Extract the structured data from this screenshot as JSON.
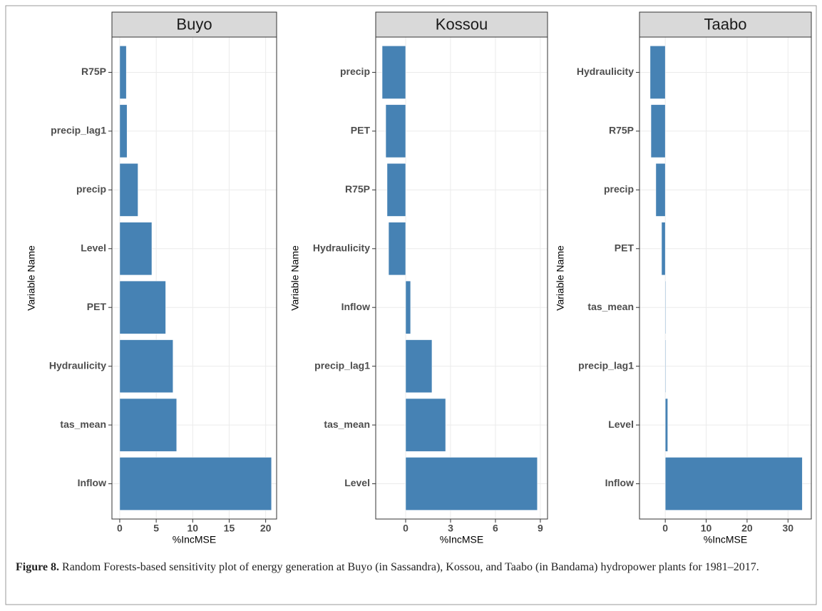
{
  "chart_data": [
    {
      "type": "bar",
      "orientation": "horizontal",
      "title": "Buyo",
      "categories": [
        "R75P",
        "precip_lag1",
        "precip",
        "Level",
        "PET",
        "Hydraulicity",
        "tas_mean",
        "Inflow"
      ],
      "values": [
        0.9,
        1.0,
        2.5,
        4.4,
        6.3,
        7.3,
        7.8,
        20.8
      ],
      "color": "#4682b4",
      "xlim": [
        -1.07,
        21.5
      ],
      "xticks": [
        0,
        5,
        10,
        15,
        20
      ],
      "xlabel": "%IncMSE",
      "ylabel": "Variable Name",
      "grid": true
    },
    {
      "type": "bar",
      "orientation": "horizontal",
      "title": "Kossou",
      "categories": [
        "precip",
        "PET",
        "R75P",
        "Hydraulicity",
        "Inflow",
        "precip_lag1",
        "tas_mean",
        "Level"
      ],
      "values": [
        -1.57,
        -1.33,
        -1.24,
        -1.14,
        0.33,
        1.76,
        2.67,
        8.8
      ],
      "color": "#4682b4",
      "xlim": [
        -2.0,
        9.48
      ],
      "xticks": [
        0,
        3,
        6,
        9
      ],
      "xlabel": "%IncMSE",
      "ylabel": "Variable Name",
      "grid": true
    },
    {
      "type": "bar",
      "orientation": "horizontal",
      "title": "Taabo",
      "categories": [
        "Hydraulicity",
        "R75P",
        "precip",
        "PET",
        "tas_mean",
        "precip_lag1",
        "Level",
        "Inflow"
      ],
      "values": [
        -3.7,
        -3.5,
        -2.3,
        -0.9,
        0.15,
        0.15,
        0.6,
        33.5
      ],
      "color": "#4682b4",
      "xlim": [
        -6.3,
        35.7
      ],
      "xticks": [
        0,
        10,
        20,
        30
      ],
      "xlabel": "%IncMSE",
      "ylabel": "Variable Name",
      "grid": true
    }
  ],
  "caption": {
    "label": "Figure 8.",
    "text": "Random Forests-based sensitivity plot of energy generation at Buyo (in Sassandra), Kossou, and Taabo (in Bandama) hydropower plants for 1981–2017."
  }
}
